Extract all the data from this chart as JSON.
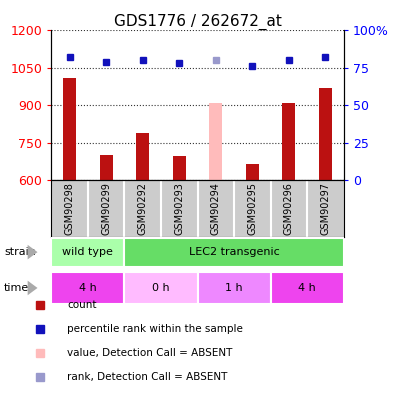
{
  "title": "GDS1776 / 262672_at",
  "samples": [
    "GSM90298",
    "GSM90299",
    "GSM90292",
    "GSM90293",
    "GSM90294",
    "GSM90295",
    "GSM90296",
    "GSM90297"
  ],
  "counts": [
    1010,
    700,
    790,
    695,
    null,
    665,
    910,
    970
  ],
  "absent_count": [
    null,
    null,
    null,
    null,
    910,
    null,
    null,
    null
  ],
  "ranks": [
    82,
    79,
    80,
    78,
    null,
    76,
    80,
    82
  ],
  "absent_rank": [
    null,
    null,
    null,
    null,
    80,
    null,
    null,
    null
  ],
  "ylim_left": [
    600,
    1200
  ],
  "ylim_right": [
    0,
    100
  ],
  "right_ticks": [
    0,
    25,
    50,
    75,
    100
  ],
  "right_tick_labels": [
    "0",
    "25",
    "50",
    "75",
    "100%"
  ],
  "left_ticks": [
    600,
    750,
    900,
    1050,
    1200
  ],
  "strain_groups": [
    {
      "label": "wild type",
      "start": 0,
      "end": 2,
      "color": "#aaffaa"
    },
    {
      "label": "LEC2 transgenic",
      "start": 2,
      "end": 8,
      "color": "#66dd66"
    }
  ],
  "time_groups": [
    {
      "label": "4 h",
      "start": 0,
      "end": 2,
      "color": "#ee44ee"
    },
    {
      "label": "0 h",
      "start": 2,
      "end": 4,
      "color": "#ffbbff"
    },
    {
      "label": "1 h",
      "start": 4,
      "end": 6,
      "color": "#ee88ff"
    },
    {
      "label": "4 h",
      "start": 6,
      "end": 8,
      "color": "#ee44ee"
    }
  ],
  "bar_color": "#bb1111",
  "absent_bar_color": "#ffbbbb",
  "rank_color": "#1111bb",
  "absent_rank_color": "#9999cc",
  "grid_color": "#333333",
  "plot_bg": "#ffffff",
  "xticklabel_bg": "#cccccc",
  "title_fontsize": 11,
  "tick_fontsize": 9,
  "label_fontsize": 8,
  "bar_width": 0.35
}
